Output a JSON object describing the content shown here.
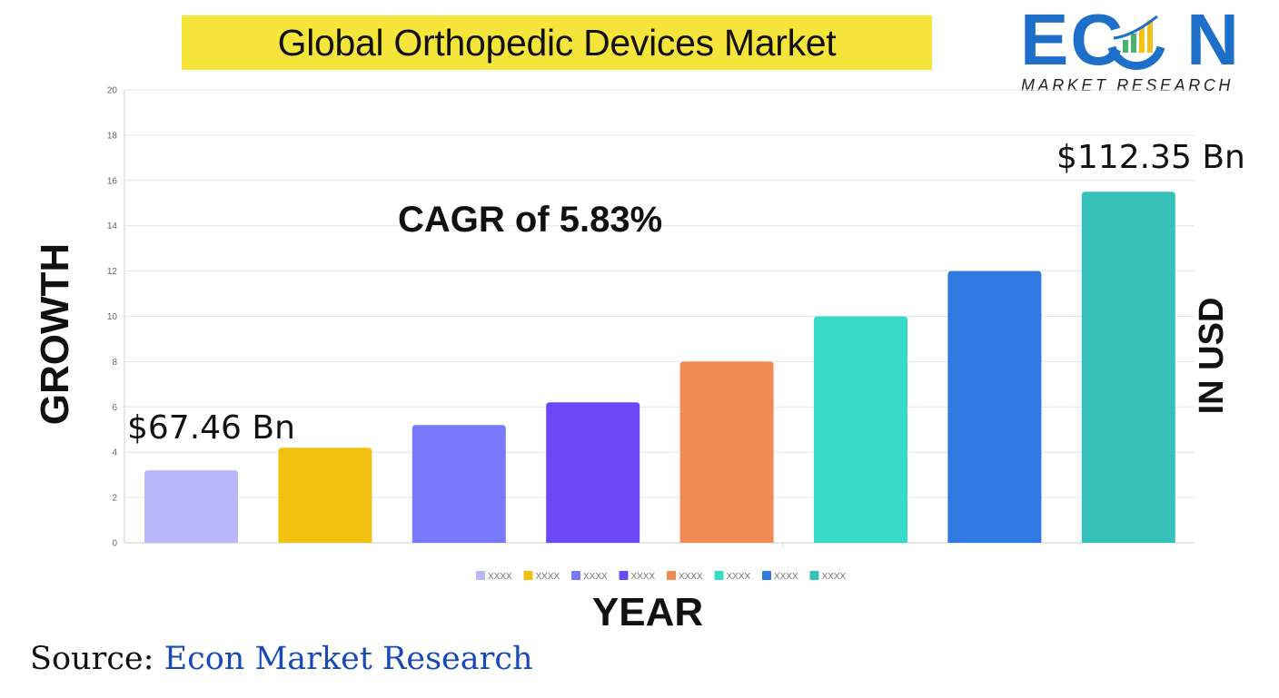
{
  "title": "Global Orthopedic Devices Market",
  "logo": {
    "wordmark": "ECON",
    "subtitle": "MARKET RESEARCH",
    "color_blue": "#1d6fc9",
    "color_accent": "#f2c21a",
    "color_green": "#49b26c"
  },
  "annotations": {
    "cagr": "CAGR of 5.83%",
    "start_value": "$67.46 Bn",
    "end_value": "$112.35 Bn"
  },
  "source": {
    "label": "Source:",
    "name": "Econ Market Research"
  },
  "chart_data": {
    "type": "bar",
    "title": "Global Orthopedic Devices Market",
    "xlabel": "YEAR",
    "ylabel": "GROWTH",
    "y2label": "IN USD",
    "ylim": [
      0,
      20
    ],
    "yticks": [
      0,
      2,
      4,
      6,
      8,
      10,
      12,
      14,
      16,
      18,
      20
    ],
    "grid": true,
    "legend_position": "bottom",
    "categories": [
      "XXXX",
      "XXXX",
      "XXXX",
      "XXXX",
      "XXXX",
      "XXXX",
      "XXXX",
      "XXXX"
    ],
    "values": [
      3.2,
      4.2,
      5.2,
      6.2,
      8.0,
      10.0,
      12.0,
      15.5
    ],
    "colors": [
      "#b8b8fb",
      "#f2c011",
      "#7879fa",
      "#6b49fb",
      "#f28a55",
      "#36dbc9",
      "#3079e2",
      "#36c2bb"
    ]
  }
}
